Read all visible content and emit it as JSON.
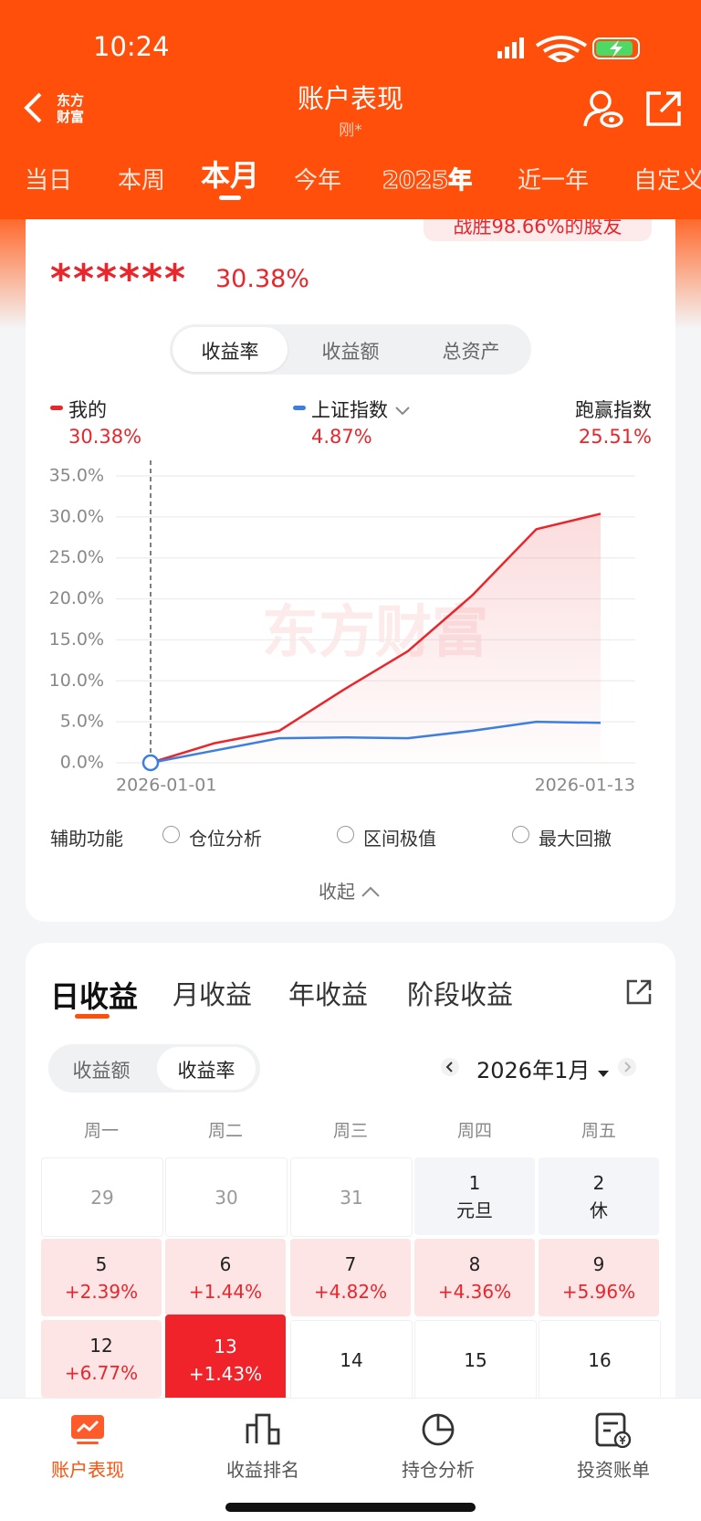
{
  "status_bar": {
    "time": "10:24"
  },
  "header": {
    "logo": [
      "东方",
      "财富"
    ],
    "title": "账户表现",
    "subtitle": "刚*"
  },
  "period_tabs": {
    "items": [
      "当日",
      "本周",
      "本月",
      "今年",
      "2025年",
      "近一年",
      "自定义"
    ],
    "active": 2
  },
  "banner": "战胜98.66%的股友",
  "summary": {
    "masked": "******",
    "return": "30.38%"
  },
  "metric_toggle": {
    "items": [
      "收益率",
      "收益额",
      "总资产"
    ],
    "active": 0
  },
  "legend_values": [
    "30.38%",
    "4.87%",
    "25.51%"
  ],
  "outperform_label": "跑赢指数",
  "chart_data": {
    "type": "line",
    "watermark": "东方财富",
    "categories": [
      "2026-01-01",
      null,
      null,
      null,
      null,
      null,
      null,
      "2026-01-13"
    ],
    "series": [
      {
        "name": "我的",
        "color": "#e8262b",
        "values": [
          0,
          2.4,
          3.9,
          8.9,
          13.6,
          20.4,
          28.5,
          30.38
        ]
      },
      {
        "name": "上证指数",
        "color": "#3d7fe0",
        "values": [
          0,
          1.5,
          3.0,
          3.1,
          3.0,
          3.9,
          5.0,
          4.87
        ]
      }
    ],
    "ylim": [
      0,
      35
    ],
    "yticks": [
      {
        "value": 0,
        "label": "0.0%"
      },
      {
        "value": 5,
        "label": "5.0%"
      },
      {
        "value": 10,
        "label": "10.0%"
      },
      {
        "value": 15,
        "label": "15.0%"
      },
      {
        "value": 20,
        "label": "20.0%"
      },
      {
        "value": 25,
        "label": "25.0%"
      },
      {
        "value": 30,
        "label": "30.0%"
      },
      {
        "value": 35,
        "label": "35.0%"
      }
    ],
    "grid": true,
    "area": true
  },
  "aux": {
    "label": "辅助功能",
    "options": [
      "仓位分析",
      "区间极值",
      "最大回撤"
    ],
    "collapse": "收起"
  },
  "earnings": {
    "tabs": [
      "日收益",
      "月收益",
      "年收益",
      "阶段收益"
    ],
    "active_tab": 0,
    "toggle": [
      "收益额",
      "收益率"
    ],
    "toggle_active": 1,
    "month": "2026年1月",
    "weekdays": [
      "周一",
      "周二",
      "周三",
      "周四",
      "周五"
    ],
    "rows": [
      [
        {
          "day": "29",
          "state": "other"
        },
        {
          "day": "30",
          "state": "other"
        },
        {
          "day": "31",
          "state": "other"
        },
        {
          "day": "1",
          "note": "元旦",
          "state": "holiday"
        },
        {
          "day": "2",
          "note": "休",
          "state": "holiday"
        }
      ],
      [
        {
          "day": "5",
          "note": "+2.39%",
          "state": "gain"
        },
        {
          "day": "6",
          "note": "+1.44%",
          "state": "gain"
        },
        {
          "day": "7",
          "note": "+4.82%",
          "state": "gain"
        },
        {
          "day": "8",
          "note": "+4.36%",
          "state": "gain"
        },
        {
          "day": "9",
          "note": "+5.96%",
          "state": "gain"
        }
      ],
      [
        {
          "day": "12",
          "note": "+6.77%",
          "state": "gain"
        },
        {
          "day": "13",
          "note": "+1.43%",
          "state": "selected"
        },
        {
          "day": "14",
          "state": "normal"
        },
        {
          "day": "15",
          "state": "normal"
        },
        {
          "day": "16",
          "state": "normal"
        }
      ]
    ]
  },
  "bottom_nav": {
    "items": [
      "账户表现",
      "收益排名",
      "持仓分析",
      "投资账单"
    ],
    "active": 0
  }
}
